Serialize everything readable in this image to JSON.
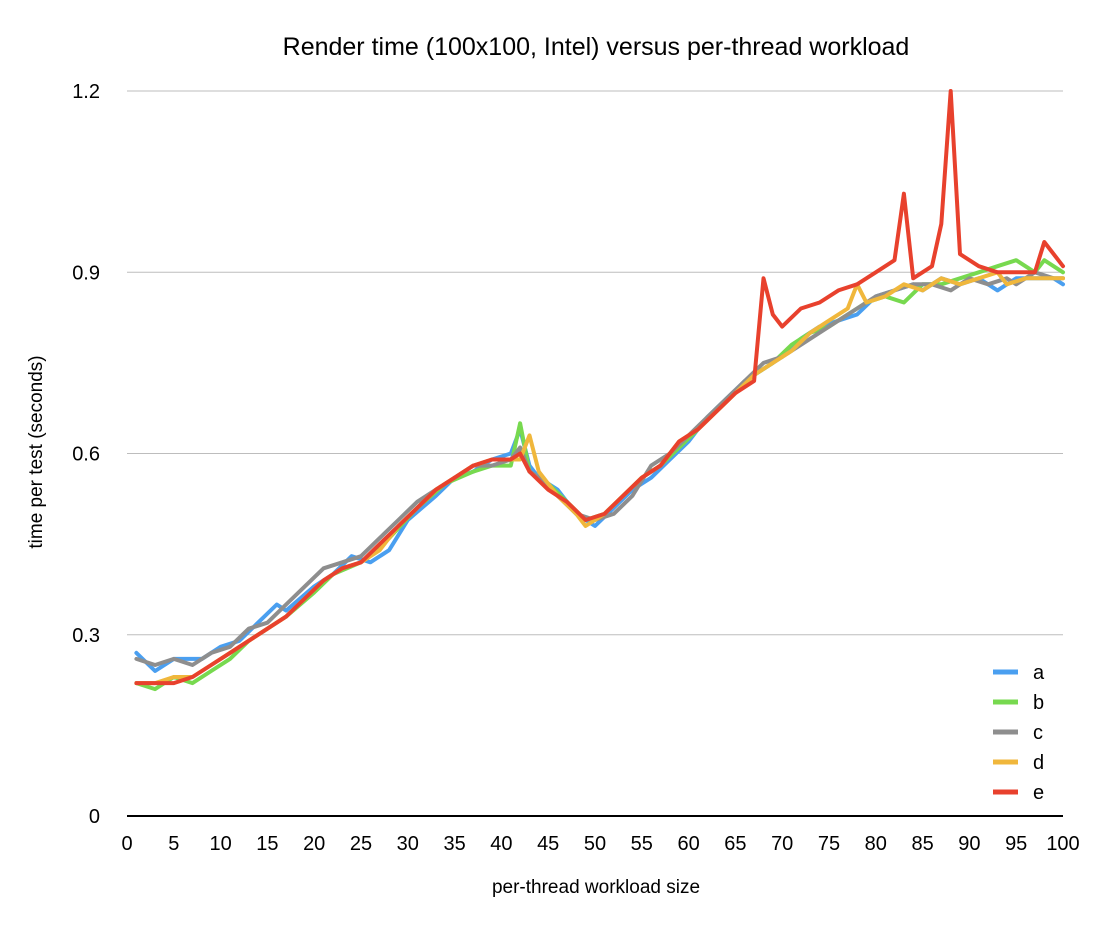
{
  "chart_data": {
    "type": "line",
    "title": "Render time (100x100, Intel) versus per-thread workload",
    "xlabel": "per-thread workload size",
    "ylabel": "time per test (seconds)",
    "xlim": [
      0,
      100
    ],
    "ylim": [
      0,
      1.2
    ],
    "x_ticks": [
      0,
      5,
      10,
      15,
      20,
      25,
      30,
      35,
      40,
      45,
      50,
      55,
      60,
      65,
      70,
      75,
      80,
      85,
      90,
      95,
      100
    ],
    "y_ticks": [
      0,
      0.3,
      0.6,
      0.9,
      1.2
    ],
    "y_tick_labels": [
      "0",
      "0.3",
      "0.6",
      "0.9",
      "1.2"
    ],
    "grid": "horizontal",
    "legend_position": "bottom-right",
    "series": [
      {
        "name": "a",
        "color": "#4a9ff0",
        "points": [
          [
            1,
            0.27
          ],
          [
            3,
            0.24
          ],
          [
            5,
            0.26
          ],
          [
            8,
            0.26
          ],
          [
            10,
            0.28
          ],
          [
            12,
            0.29
          ],
          [
            14,
            0.32
          ],
          [
            16,
            0.35
          ],
          [
            17,
            0.34
          ],
          [
            20,
            0.38
          ],
          [
            22,
            0.4
          ],
          [
            24,
            0.43
          ],
          [
            26,
            0.42
          ],
          [
            28,
            0.44
          ],
          [
            30,
            0.49
          ],
          [
            33,
            0.53
          ],
          [
            35,
            0.56
          ],
          [
            37,
            0.57
          ],
          [
            39,
            0.59
          ],
          [
            41,
            0.6
          ],
          [
            42,
            0.64
          ],
          [
            43,
            0.58
          ],
          [
            44,
            0.56
          ],
          [
            46,
            0.54
          ],
          [
            48,
            0.5
          ],
          [
            50,
            0.48
          ],
          [
            52,
            0.51
          ],
          [
            54,
            0.54
          ],
          [
            56,
            0.56
          ],
          [
            58,
            0.59
          ],
          [
            60,
            0.62
          ],
          [
            62,
            0.66
          ],
          [
            64,
            0.69
          ],
          [
            66,
            0.72
          ],
          [
            68,
            0.74
          ],
          [
            70,
            0.76
          ],
          [
            72,
            0.79
          ],
          [
            74,
            0.81
          ],
          [
            76,
            0.82
          ],
          [
            78,
            0.83
          ],
          [
            80,
            0.86
          ],
          [
            82,
            0.87
          ],
          [
            84,
            0.88
          ],
          [
            85,
            0.87
          ],
          [
            87,
            0.89
          ],
          [
            89,
            0.88
          ],
          [
            91,
            0.89
          ],
          [
            93,
            0.87
          ],
          [
            95,
            0.89
          ],
          [
            97,
            0.89
          ],
          [
            99,
            0.89
          ],
          [
            100,
            0.88
          ]
        ]
      },
      {
        "name": "b",
        "color": "#77d94f",
        "points": [
          [
            1,
            0.22
          ],
          [
            3,
            0.21
          ],
          [
            5,
            0.23
          ],
          [
            7,
            0.22
          ],
          [
            9,
            0.24
          ],
          [
            11,
            0.26
          ],
          [
            13,
            0.29
          ],
          [
            15,
            0.31
          ],
          [
            17,
            0.33
          ],
          [
            20,
            0.37
          ],
          [
            22,
            0.4
          ],
          [
            25,
            0.42
          ],
          [
            28,
            0.46
          ],
          [
            31,
            0.51
          ],
          [
            34,
            0.55
          ],
          [
            37,
            0.57
          ],
          [
            39,
            0.58
          ],
          [
            41,
            0.58
          ],
          [
            42,
            0.65
          ],
          [
            43,
            0.57
          ],
          [
            45,
            0.55
          ],
          [
            47,
            0.52
          ],
          [
            49,
            0.49
          ],
          [
            51,
            0.5
          ],
          [
            53,
            0.53
          ],
          [
            55,
            0.56
          ],
          [
            57,
            0.58
          ],
          [
            59,
            0.61
          ],
          [
            61,
            0.64
          ],
          [
            63,
            0.67
          ],
          [
            65,
            0.7
          ],
          [
            67,
            0.73
          ],
          [
            69,
            0.75
          ],
          [
            71,
            0.78
          ],
          [
            73,
            0.8
          ],
          [
            75,
            0.81
          ],
          [
            77,
            0.83
          ],
          [
            79,
            0.85
          ],
          [
            81,
            0.86
          ],
          [
            83,
            0.85
          ],
          [
            85,
            0.88
          ],
          [
            87,
            0.88
          ],
          [
            89,
            0.89
          ],
          [
            91,
            0.9
          ],
          [
            93,
            0.91
          ],
          [
            95,
            0.92
          ],
          [
            97,
            0.9
          ],
          [
            98,
            0.92
          ],
          [
            100,
            0.9
          ]
        ]
      },
      {
        "name": "c",
        "color": "#8e8e8e",
        "points": [
          [
            1,
            0.26
          ],
          [
            3,
            0.25
          ],
          [
            5,
            0.26
          ],
          [
            7,
            0.25
          ],
          [
            9,
            0.27
          ],
          [
            11,
            0.28
          ],
          [
            13,
            0.31
          ],
          [
            15,
            0.32
          ],
          [
            17,
            0.35
          ],
          [
            19,
            0.38
          ],
          [
            21,
            0.41
          ],
          [
            23,
            0.42
          ],
          [
            25,
            0.43
          ],
          [
            27,
            0.46
          ],
          [
            29,
            0.49
          ],
          [
            31,
            0.52
          ],
          [
            33,
            0.54
          ],
          [
            35,
            0.56
          ],
          [
            37,
            0.58
          ],
          [
            39,
            0.58
          ],
          [
            41,
            0.59
          ],
          [
            42,
            0.61
          ],
          [
            43,
            0.57
          ],
          [
            44,
            0.56
          ],
          [
            46,
            0.53
          ],
          [
            48,
            0.5
          ],
          [
            50,
            0.49
          ],
          [
            52,
            0.5
          ],
          [
            54,
            0.53
          ],
          [
            56,
            0.58
          ],
          [
            58,
            0.6
          ],
          [
            60,
            0.63
          ],
          [
            62,
            0.66
          ],
          [
            64,
            0.69
          ],
          [
            66,
            0.72
          ],
          [
            68,
            0.75
          ],
          [
            70,
            0.76
          ],
          [
            72,
            0.78
          ],
          [
            74,
            0.8
          ],
          [
            76,
            0.82
          ],
          [
            78,
            0.84
          ],
          [
            80,
            0.86
          ],
          [
            82,
            0.87
          ],
          [
            84,
            0.88
          ],
          [
            86,
            0.88
          ],
          [
            88,
            0.87
          ],
          [
            90,
            0.89
          ],
          [
            92,
            0.88
          ],
          [
            94,
            0.89
          ],
          [
            95,
            0.88
          ],
          [
            97,
            0.9
          ],
          [
            99,
            0.89
          ],
          [
            100,
            0.89
          ]
        ]
      },
      {
        "name": "d",
        "color": "#f0b73c",
        "points": [
          [
            1,
            0.22
          ],
          [
            3,
            0.22
          ],
          [
            5,
            0.23
          ],
          [
            7,
            0.23
          ],
          [
            9,
            0.25
          ],
          [
            11,
            0.27
          ],
          [
            13,
            0.29
          ],
          [
            15,
            0.31
          ],
          [
            17,
            0.33
          ],
          [
            19,
            0.36
          ],
          [
            21,
            0.39
          ],
          [
            23,
            0.41
          ],
          [
            25,
            0.42
          ],
          [
            27,
            0.44
          ],
          [
            29,
            0.48
          ],
          [
            31,
            0.51
          ],
          [
            33,
            0.54
          ],
          [
            35,
            0.56
          ],
          [
            37,
            0.58
          ],
          [
            39,
            0.59
          ],
          [
            41,
            0.59
          ],
          [
            42,
            0.59
          ],
          [
            43,
            0.63
          ],
          [
            44,
            0.57
          ],
          [
            46,
            0.53
          ],
          [
            48,
            0.5
          ],
          [
            49,
            0.48
          ],
          [
            51,
            0.5
          ],
          [
            53,
            0.53
          ],
          [
            55,
            0.56
          ],
          [
            57,
            0.58
          ],
          [
            59,
            0.62
          ],
          [
            61,
            0.64
          ],
          [
            63,
            0.67
          ],
          [
            65,
            0.7
          ],
          [
            67,
            0.73
          ],
          [
            69,
            0.75
          ],
          [
            71,
            0.77
          ],
          [
            73,
            0.8
          ],
          [
            75,
            0.82
          ],
          [
            77,
            0.84
          ],
          [
            78,
            0.88
          ],
          [
            79,
            0.85
          ],
          [
            81,
            0.86
          ],
          [
            83,
            0.88
          ],
          [
            85,
            0.87
          ],
          [
            87,
            0.89
          ],
          [
            89,
            0.88
          ],
          [
            91,
            0.89
          ],
          [
            93,
            0.9
          ],
          [
            94,
            0.88
          ],
          [
            96,
            0.89
          ],
          [
            98,
            0.89
          ],
          [
            100,
            0.89
          ]
        ]
      },
      {
        "name": "e",
        "color": "#e8412d",
        "points": [
          [
            1,
            0.22
          ],
          [
            3,
            0.22
          ],
          [
            5,
            0.22
          ],
          [
            7,
            0.23
          ],
          [
            9,
            0.25
          ],
          [
            11,
            0.27
          ],
          [
            13,
            0.29
          ],
          [
            15,
            0.31
          ],
          [
            17,
            0.33
          ],
          [
            19,
            0.36
          ],
          [
            21,
            0.39
          ],
          [
            23,
            0.41
          ],
          [
            25,
            0.42
          ],
          [
            27,
            0.45
          ],
          [
            29,
            0.48
          ],
          [
            31,
            0.51
          ],
          [
            33,
            0.54
          ],
          [
            35,
            0.56
          ],
          [
            37,
            0.58
          ],
          [
            39,
            0.59
          ],
          [
            41,
            0.59
          ],
          [
            42,
            0.6
          ],
          [
            43,
            0.57
          ],
          [
            45,
            0.54
          ],
          [
            47,
            0.52
          ],
          [
            49,
            0.49
          ],
          [
            51,
            0.5
          ],
          [
            53,
            0.53
          ],
          [
            55,
            0.56
          ],
          [
            57,
            0.58
          ],
          [
            59,
            0.62
          ],
          [
            61,
            0.64
          ],
          [
            63,
            0.67
          ],
          [
            65,
            0.7
          ],
          [
            67,
            0.72
          ],
          [
            68,
            0.89
          ],
          [
            69,
            0.83
          ],
          [
            70,
            0.81
          ],
          [
            72,
            0.84
          ],
          [
            74,
            0.85
          ],
          [
            76,
            0.87
          ],
          [
            78,
            0.88
          ],
          [
            80,
            0.9
          ],
          [
            82,
            0.92
          ],
          [
            83,
            1.03
          ],
          [
            84,
            0.89
          ],
          [
            86,
            0.91
          ],
          [
            87,
            0.98
          ],
          [
            88,
            1.2
          ],
          [
            89,
            0.93
          ],
          [
            91,
            0.91
          ],
          [
            93,
            0.9
          ],
          [
            95,
            0.9
          ],
          [
            97,
            0.9
          ],
          [
            98,
            0.95
          ],
          [
            100,
            0.91
          ]
        ]
      }
    ]
  }
}
